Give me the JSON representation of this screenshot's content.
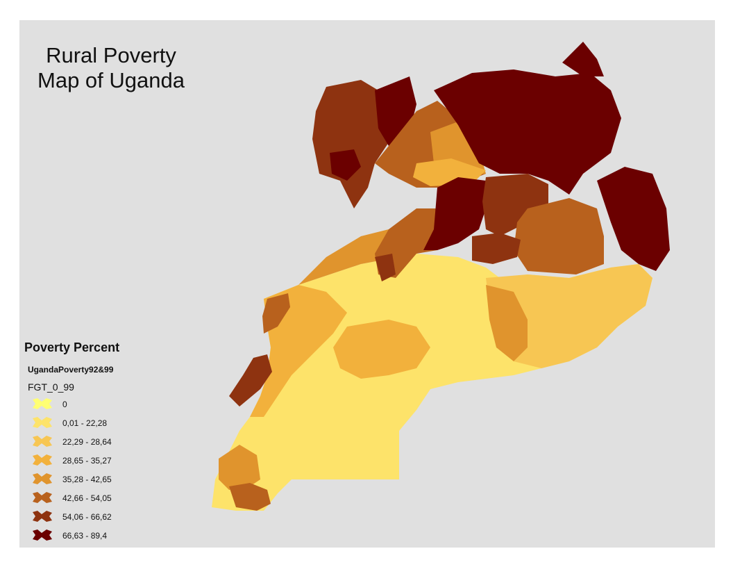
{
  "map": {
    "title_line1": "Rural Poverty",
    "title_line2": "Map of Uganda",
    "legend": {
      "title": "Poverty Percent",
      "layer": "UgandaPoverty92&99",
      "field": "FGT_0_99",
      "classes": [
        {
          "label": "0",
          "color": "#ffff73"
        },
        {
          "label": "0,01 - 22,28",
          "color": "#fde36a"
        },
        {
          "label": "22,29 - 28,64",
          "color": "#f7c653"
        },
        {
          "label": "28,65 - 35,27",
          "color": "#f2b13c"
        },
        {
          "label": "35,28 - 42,65",
          "color": "#e0942d"
        },
        {
          "label": "42,66 - 54,05",
          "color": "#b8611d"
        },
        {
          "label": "54,06 - 66,62",
          "color": "#8e3310"
        },
        {
          "label": "66,63 - 89,4",
          "color": "#6b0000"
        }
      ]
    },
    "water_color": "#e0e0e0"
  }
}
